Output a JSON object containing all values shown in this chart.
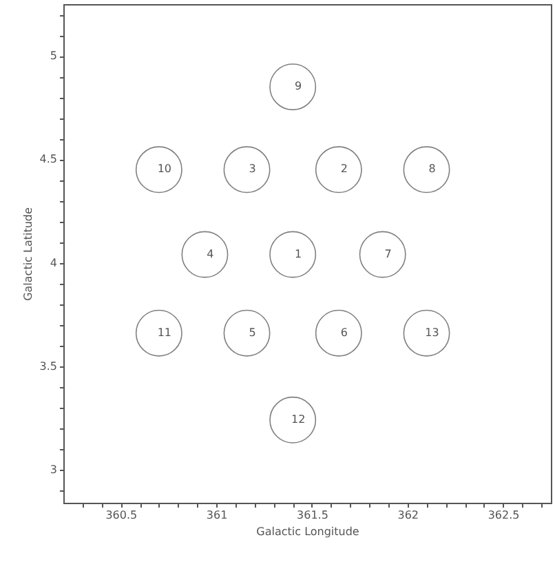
{
  "chart_data": {
    "type": "scatter",
    "xlabel": "Galactic Longitude",
    "ylabel": "Galactic Latitude",
    "xlim": [
      360.2,
      362.75
    ],
    "ylim": [
      2.84,
      5.25
    ],
    "xticks": [
      {
        "value": 360.3,
        "label": null
      },
      {
        "value": 360.4,
        "label": null
      },
      {
        "value": 360.5,
        "label": "360.5"
      },
      {
        "value": 360.6,
        "label": null
      },
      {
        "value": 360.7,
        "label": null
      },
      {
        "value": 360.8,
        "label": null
      },
      {
        "value": 360.9,
        "label": null
      },
      361,
      {
        "value": 361.1,
        "label": null
      },
      {
        "value": 361.2,
        "label": null
      },
      {
        "value": 361.3,
        "label": null
      },
      {
        "value": 361.4,
        "label": null
      },
      361.5,
      {
        "value": 361.6,
        "label": null
      },
      {
        "value": 361.7,
        "label": null
      },
      {
        "value": 361.8,
        "label": null
      },
      {
        "value": 361.9,
        "label": null
      },
      362,
      {
        "value": 362.1,
        "label": null
      },
      {
        "value": 362.2,
        "label": null
      },
      {
        "value": 362.3,
        "label": null
      },
      {
        "value": 362.4,
        "label": null
      },
      362.5,
      {
        "value": 362.6,
        "label": null
      },
      {
        "value": 362.7,
        "label": null
      }
    ],
    "yticks": [
      {
        "value": 2.9,
        "label": null
      },
      3,
      {
        "value": 3.1,
        "label": null
      },
      {
        "value": 3.2,
        "label": null
      },
      {
        "value": 3.3,
        "label": null
      },
      {
        "value": 3.4,
        "label": null
      },
      3.5,
      {
        "value": 3.6,
        "label": null
      },
      {
        "value": 3.7,
        "label": null
      },
      {
        "value": 3.8,
        "label": null
      },
      {
        "value": 3.9,
        "label": null
      },
      4,
      {
        "value": 4.1,
        "label": null
      },
      {
        "value": 4.2,
        "label": null
      },
      {
        "value": 4.3,
        "label": null
      },
      {
        "value": 4.4,
        "label": null
      },
      4.5,
      {
        "value": 4.6,
        "label": null
      },
      {
        "value": 4.7,
        "label": null
      },
      {
        "value": 4.8,
        "label": null
      },
      {
        "value": 4.9,
        "label": null
      },
      5,
      {
        "value": 5.1,
        "label": null
      },
      {
        "value": 5.2,
        "label": null
      }
    ],
    "grid": false,
    "marker": "circle",
    "annotations": [
      {
        "text": "1",
        "x": 361.4,
        "y": 4.04
      },
      {
        "text": "2",
        "x": 361.64,
        "y": 4.45
      },
      {
        "text": "3",
        "x": 361.16,
        "y": 4.45
      },
      {
        "text": "4",
        "x": 360.94,
        "y": 4.04
      },
      {
        "text": "5",
        "x": 361.16,
        "y": 3.66
      },
      {
        "text": "6",
        "x": 361.64,
        "y": 3.66
      },
      {
        "text": "7",
        "x": 361.87,
        "y": 4.04
      },
      {
        "text": "8",
        "x": 362.1,
        "y": 4.45
      },
      {
        "text": "9",
        "x": 361.4,
        "y": 4.85
      },
      {
        "text": "10",
        "x": 360.7,
        "y": 4.45
      },
      {
        "text": "11",
        "x": 360.7,
        "y": 3.66
      },
      {
        "text": "12",
        "x": 361.4,
        "y": 3.24
      },
      {
        "text": "13",
        "x": 362.1,
        "y": 3.66
      }
    ],
    "series": [
      {
        "color": "#808080",
        "x": [
          361.4,
          361.64,
          361.16,
          360.94,
          361.16,
          361.64,
          361.87,
          362.1,
          361.4,
          360.7,
          360.7,
          361.4,
          362.1
        ],
        "values": [
          4.04,
          4.45,
          4.45,
          4.04,
          3.66,
          3.66,
          4.04,
          4.45,
          4.85,
          4.45,
          3.66,
          3.24,
          3.66
        ]
      }
    ]
  }
}
